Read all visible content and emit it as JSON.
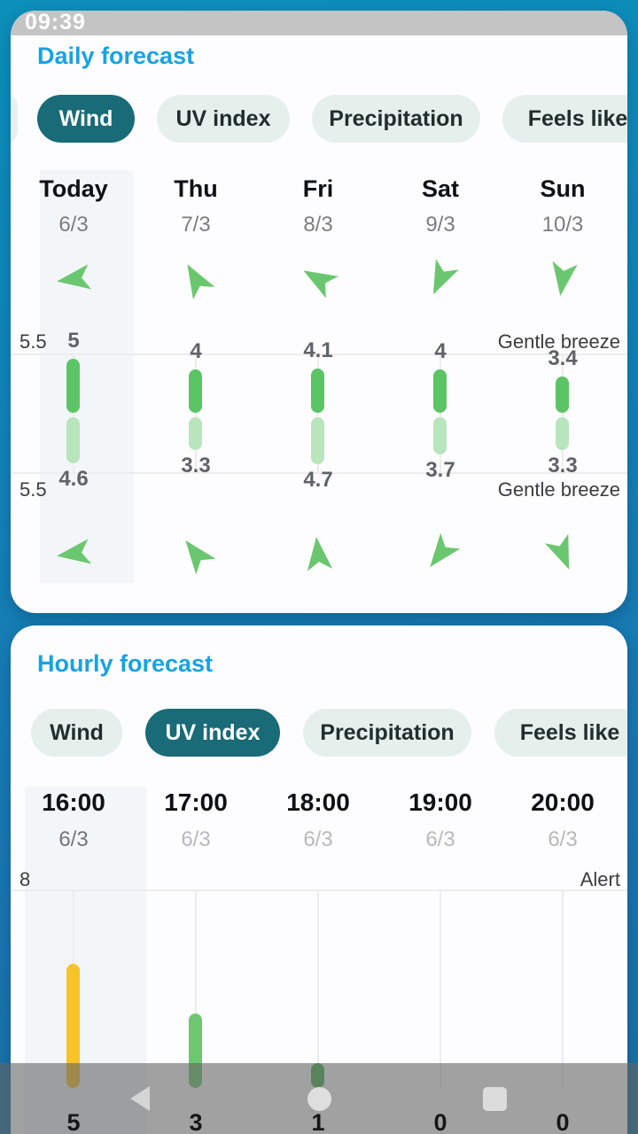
{
  "colors": {
    "title-blue": "#18a2e2",
    "tab-active-bg": "#186b77",
    "bar-green": "#5bc566",
    "bar-light-green": "#b9e5bc",
    "arrow-green": "#6bc76f",
    "uv-yellow": "#f8c327",
    "uv-green": "#6cc76f",
    "uv-dark-green": "#4caf50",
    "statusbar": "#c4c4c4"
  },
  "status_bar": {
    "clock": "09:39"
  },
  "daily": {
    "title": "Daily forecast",
    "tabs": [
      {
        "label": "Wind",
        "active": true
      },
      {
        "label": "UV index",
        "active": false
      },
      {
        "label": "Precipitation",
        "active": false
      },
      {
        "label": "Feels like",
        "active": false
      }
    ],
    "axis": {
      "max_value": 5.5,
      "max_label_top": "5.5",
      "max_label_bottom": "5.5",
      "category_top": "Gentle breeze",
      "category_bottom": "Gentle breeze"
    },
    "columns": [
      {
        "day": "Today",
        "date": "6/3",
        "day_value": "5",
        "night_value": "4.6",
        "arrow_day_deg": 262,
        "arrow_night_deg": 262
      },
      {
        "day": "Thu",
        "date": "7/3",
        "day_value": "4",
        "night_value": "3.3",
        "arrow_day_deg": 330,
        "arrow_night_deg": 322
      },
      {
        "day": "Fri",
        "date": "8/3",
        "day_value": "4.1",
        "night_value": "4.7",
        "arrow_day_deg": 300,
        "arrow_night_deg": 354
      },
      {
        "day": "Sat",
        "date": "9/3",
        "day_value": "4",
        "night_value": "3.7",
        "arrow_day_deg": 205,
        "arrow_night_deg": 218
      },
      {
        "day": "Sun",
        "date": "10/3",
        "day_value": "3.4",
        "night_value": "3.3",
        "arrow_day_deg": 188,
        "arrow_night_deg": 158
      }
    ]
  },
  "hourly": {
    "title": "Hourly forecast",
    "tabs": [
      {
        "label": "Wind",
        "active": false
      },
      {
        "label": "UV index",
        "active": true
      },
      {
        "label": "Precipitation",
        "active": false
      },
      {
        "label": "Feels like",
        "active": false
      }
    ],
    "axis": {
      "max_value": 8,
      "max_label": "8",
      "alert_label": "Alert"
    },
    "columns": [
      {
        "time": "16:00",
        "date": "6/3",
        "uv_value": "5",
        "bar_color": "#f8c327"
      },
      {
        "time": "17:00",
        "date": "6/3",
        "uv_value": "3",
        "bar_color": "#6cc76f"
      },
      {
        "time": "18:00",
        "date": "6/3",
        "uv_value": "1",
        "bar_color": "#4caf50"
      },
      {
        "time": "19:00",
        "date": "6/3",
        "uv_value": "0",
        "bar_color": null
      },
      {
        "time": "20:00",
        "date": "6/3",
        "uv_value": "0",
        "bar_color": null
      }
    ]
  },
  "chart_data": [
    {
      "type": "bar",
      "title": "Daily forecast — Wind",
      "categories": [
        "Today",
        "Thu",
        "Fri",
        "Sat",
        "Sun"
      ],
      "series": [
        {
          "name": "day wind speed",
          "values": [
            5,
            4,
            4.1,
            4,
            3.4
          ]
        },
        {
          "name": "night wind speed",
          "values": [
            4.6,
            3.3,
            4.7,
            3.7,
            3.3
          ]
        }
      ],
      "ylim": [
        0,
        5.5
      ],
      "axis_annotations": [
        "5.5",
        "Gentle breeze"
      ],
      "dates": [
        "6/3",
        "7/3",
        "8/3",
        "9/3",
        "10/3"
      ],
      "grid": true,
      "legend": false
    },
    {
      "type": "bar",
      "title": "Hourly forecast — UV index",
      "categories": [
        "16:00",
        "17:00",
        "18:00",
        "19:00",
        "20:00"
      ],
      "values": [
        5,
        3,
        1,
        0,
        0
      ],
      "ylim": [
        0,
        8
      ],
      "axis_annotations": [
        "8",
        "Alert"
      ],
      "dates": [
        "6/3",
        "6/3",
        "6/3",
        "6/3",
        "6/3"
      ],
      "grid": true,
      "legend": false
    }
  ],
  "nav_bar": {
    "back": "back",
    "home": "home",
    "recents": "recents"
  }
}
